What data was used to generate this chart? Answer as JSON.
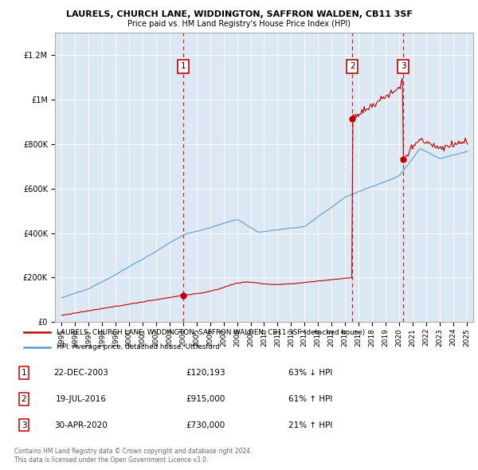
{
  "title": "LAURELS, CHURCH LANE, WIDDINGTON, SAFFRON WALDEN, CB11 3SF",
  "subtitle": "Price paid vs. HM Land Registry's House Price Index (HPI)",
  "legend_line1": "LAURELS, CHURCH LANE, WIDDINGTON, SAFFRON WALDEN, CB11 3SF (detached house)",
  "legend_line2": "HPI: Average price, detached house, Uttlesford",
  "footer": "Contains HM Land Registry data © Crown copyright and database right 2024.\nThis data is licensed under the Open Government Licence v3.0.",
  "sales": [
    {
      "num": 1,
      "date": "22-DEC-2003",
      "price": 120193,
      "pct": "63%",
      "dir": "↓",
      "year": 2004.0
    },
    {
      "num": 2,
      "date": "19-JUL-2016",
      "price": 915000,
      "pct": "61%",
      "dir": "↑",
      "year": 2016.54
    },
    {
      "num": 3,
      "date": "30-APR-2020",
      "price": 730000,
      "pct": "21%",
      "dir": "↑",
      "year": 2020.33
    }
  ],
  "hpi_color": "#5b9bd5",
  "price_color": "#c00000",
  "vline_color": "#c00000",
  "plot_bg": "#dce9f5",
  "ylim": [
    0,
    1300000
  ],
  "xlim_start": 1994.5,
  "xlim_end": 2025.5,
  "yticks": [
    0,
    200000,
    400000,
    600000,
    800000,
    1000000,
    1200000
  ],
  "xticks": [
    1995,
    1996,
    1997,
    1998,
    1999,
    2000,
    2001,
    2002,
    2003,
    2004,
    2005,
    2006,
    2007,
    2008,
    2009,
    2010,
    2011,
    2012,
    2013,
    2014,
    2015,
    2016,
    2017,
    2018,
    2019,
    2020,
    2021,
    2022,
    2023,
    2024,
    2025
  ]
}
